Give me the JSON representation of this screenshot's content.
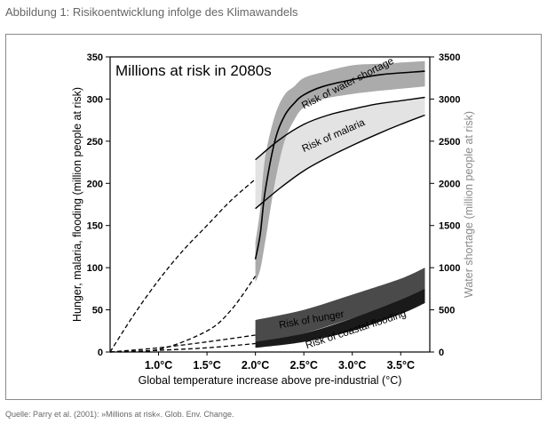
{
  "caption": "Abbildung 1: Risikoentwicklung infolge des Klimawandels",
  "source": "Quelle: Parry et al. (2001): »Millions at risk«. Glob. Env. Change.",
  "chart_data": {
    "type": "area",
    "title": "Millions at risk in 2080s",
    "xlabel": "Global temperature increase above pre-industrial (°C)",
    "ylabel_left": "Hunger, malaria, flooding (million people at risk)",
    "ylabel_right": "Water shortage (million people at risk)",
    "xlim": [
      0.5,
      3.8
    ],
    "ylim_left": [
      0,
      350
    ],
    "ylim_right": [
      0,
      3500
    ],
    "x_ticks": [
      {
        "value": 1.0,
        "label": "1.0°C"
      },
      {
        "value": 1.5,
        "label": "1.5°C"
      },
      {
        "value": 2.0,
        "label": "2.0°C"
      },
      {
        "value": 2.5,
        "label": "2.5°C"
      },
      {
        "value": 3.0,
        "label": "3.0°C"
      },
      {
        "value": 3.5,
        "label": "3.5°C"
      }
    ],
    "y_ticks_left": [
      0,
      50,
      100,
      150,
      200,
      250,
      300,
      350
    ],
    "y_ticks_right": [
      0,
      500,
      1000,
      1500,
      2000,
      2500,
      3000,
      3500
    ],
    "series": [
      {
        "name": "Risk of water shortage",
        "axis": "right",
        "color": "#a6a6a6",
        "x": [
          2.0,
          2.05,
          2.1,
          2.2,
          2.3,
          2.4,
          2.5,
          2.7,
          3.0,
          3.3,
          3.75
        ],
        "upper": [
          1300,
          1700,
          2300,
          2800,
          3050,
          3150,
          3250,
          3320,
          3400,
          3420,
          3450
        ],
        "lower": [
          830,
          980,
          1300,
          2000,
          2500,
          2750,
          2900,
          3000,
          3060,
          3100,
          3150
        ],
        "mid": [
          1100,
          1400,
          1900,
          2500,
          2800,
          2950,
          3050,
          3150,
          3230,
          3290,
          3330
        ],
        "dashed_lower_x": [
          0.5,
          1.0,
          1.5,
          1.75,
          2.0
        ],
        "dashed_lower_y": [
          0,
          30,
          250,
          500,
          900
        ]
      },
      {
        "name": "Risk of malaria",
        "axis": "left",
        "color": "#e3e3e3",
        "x": [
          2.0,
          2.25,
          2.5,
          2.75,
          3.0,
          3.25,
          3.5,
          3.75
        ],
        "upper": [
          228,
          252,
          270,
          281,
          288,
          294,
          298,
          302
        ],
        "lower": [
          170,
          194,
          215,
          231,
          245,
          258,
          270,
          281
        ],
        "dashed_x": [
          0.5,
          0.75,
          1.0,
          1.25,
          1.5,
          1.75,
          2.0
        ],
        "dashed_y": [
          0,
          45,
          85,
          120,
          150,
          180,
          205
        ]
      },
      {
        "name": "Risk of hunger",
        "axis": "left",
        "color": "#4a4a4a",
        "x": [
          2.0,
          2.5,
          3.0,
          3.5,
          3.75
        ],
        "upper": [
          38,
          50,
          68,
          87,
          100
        ],
        "lower": [
          10,
          22,
          40,
          58,
          70
        ],
        "dashed_x": [
          0.5,
          1.0,
          1.5,
          2.0
        ],
        "dashed_y": [
          0,
          5,
          12,
          20
        ]
      },
      {
        "name": "Risk of coastal flooding",
        "axis": "left",
        "color": "#1a1a1a",
        "x": [
          2.0,
          2.5,
          3.0,
          3.5,
          3.75
        ],
        "upper": [
          12,
          22,
          40,
          62,
          75
        ],
        "lower": [
          5,
          12,
          25,
          45,
          58
        ],
        "dashed_x": [
          0.5,
          1.0,
          1.5,
          2.0
        ],
        "dashed_y": [
          0,
          2,
          5,
          10
        ]
      }
    ]
  }
}
